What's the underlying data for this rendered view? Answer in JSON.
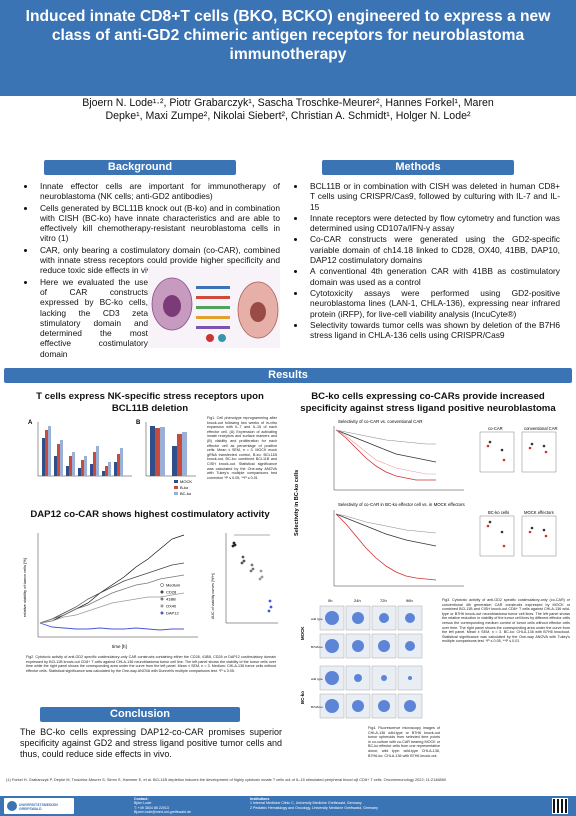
{
  "title": "Induced innate CD8+T cells (BKO, BCKO) engineered to express a new class of anti-GD2 chimeric antigen receptors for neuroblastoma immunotherapy",
  "authors_line1": "Bjoern N. Lode¹·², Piotr Grabarczyk¹, Sascha Troschke-Meurer², Hannes Forkel¹, Maren",
  "authors_line2": "Depke¹, Maxi Zumpe², Nikolai Siebert², Christian A. Schmidt¹, Holger N. Lode²",
  "sections": {
    "background": "Background",
    "methods": "Methods",
    "results": "Results",
    "conclusion": "Conclusion"
  },
  "background_items": [
    "Innate effector cells are important for immunotherapy of neuroblastoma (NK cells; anti-GD2 antibodies)",
    "Cells generated by BCL11B knock out (B-ko) and in combination with CISH (BC-ko) have innate characteristics and are able to effectively kill chemotherapy-resistant neuroblastoma cells in vitro (1)",
    "CAR, only bearing a costimulatory domain (co-CAR), combined with innate stress receptors could provide higher specificity and reduce toxic side effects in vivo",
    "Here we evaluated the use of CAR constructs expressed by BC-ko cells, lacking the CD3 zeta stimulatory domain and determined the most effective costimulatory domain"
  ],
  "methods_items": [
    "BCL11B or in combination with CISH was deleted in human CD8+ T cells using CRISPR/Cas9, followed by culturing with IL-7 and IL-15",
    "Innate receptors were detected by flow cytometry and function was determined using CD107a/IFN-γ assay",
    "Co-CAR constructs were generated using the GD2-specific variable domain of ch14.18 linked to CD28, OX40, 41BB, DAP10, DAP12 costimulatory domains",
    "A conventional 4th generation CAR with 41BB as costimulatory domain was used as a control",
    "Cytotoxicity assays were performed using GD2-positive neuroblastoma lines (LAN-1, CHLA-136), expressing near infrared protein (iRFP), for live-cell viability analysis (IncuCyte®)",
    "Selectivity towards tumor cells was shown by deletion of the B7H6 stress ligand in CHLA-136 cells using CRISPR/Cas9"
  ],
  "results": {
    "h_left1": "T cells express NK-specific stress receptors upon BCL11B deletion",
    "h_left2": "DAP12 co-CAR shows highest costimulatory activity",
    "h_right1": "BC-ko cells expressing co-CARs provide increased specificity against stress ligand positive neuroblastoma",
    "fig1_caption": "Fig1. Cell phenotype reprogramming after knock-out following two weeks of in-vitro expansion with IL-7 and IL-15 of each effector cell. (A) Expression of activating innate receptors and surface markers and (B) viability and proliferation for each effector cell as percentage of positive cells. Mean ± SEM, n = 3. MOCK mock gRNA transfected control, B-ko: BCL11B knock-out, BC-ko: combined BCL11B and CISH knock-out. Statistical significance was calculated by the One-way ANOVA with Tukey's multiple comparisons test correction *P ≤ 0.05, **P ≤ 0.01",
    "fig2_caption": "Fig2. Cytotoxic activity of anti-GD2 specific costimulatory-only CAR constructs containing either the CD28, 41BB, CD28 or DAP12 costimulatory domain expressed by BCL11B knock-out CD8+ T cells against CHLA-136 neuroblastoma tumor cell line. The left panel shows the viability of the tumor cells over time while the right panel shows the corresponding area under the curve from the left panel. Mean ± SEM, n = 3. Medium: CHLA-136 tumor cells without effector cells. Statistical significance was calculated by the One-way ANOVA with Dunnett's multiple comparisons test. *P ≤ 0.05.",
    "fig3_caption": "Fig3. Cytotoxic activity of anti-GD2 specific costimulatory-only (co-CAR) or conventional 4th generation CAR constructs expressed by MOCK or combined BCL11B and CISH knock-out CD8+ T cells against CHLA-136 wild-type or B7H6 knock-out neuroblastoma tumor cell lines. The left panel shows the relative reduction in viability of the tumor cell lines by different effector cells versus the corresponding medium control of tumor cells without effector cells over time. The right panel shows the corresponding area under the curve from the left panel. Mean ± SEM, n = 3. BC-ko: CHLA-136 with B7H6 knockout. Statistical significance was calculated by the One-way ANOVA with Tukey's multiple comparisons test. *P ≤ 0.05, **P ≤ 0.01",
    "fig4_caption": "Fig4. Fluorescence microscopy images of CHLA-136 wild-type or B7H6 knock-out tumor spheroids from selected time points in co-culture with co-CAR bearing MOCK or BC-ko effector cells from one representative donor, wild type: wild-type CHLA-136, B7H6-ko: CHLA-136 with B7H6 knock-out.",
    "panel_top_right": "Selectivity of co-CAR vs. conventional CAR",
    "panel_mid_right": "Selectivity of co-CAR in BC-ko effector cell vs. in MOCK effectors",
    "y_side_label": "Selectivity in BC-ko cells",
    "row_labels": [
      "MOCK",
      "BC-ko"
    ],
    "row_sub": [
      "wild type",
      "B7H6-ko",
      "wild type",
      "B7H6-ko"
    ],
    "time_cols": [
      "0h",
      "24h",
      "72h",
      "96h"
    ],
    "mini_titles": [
      "co-CAR",
      "conventional CAR",
      "BC-ko cells",
      "MOCK effectors"
    ],
    "legend1": [
      "MOCK",
      "B-ko",
      "BC-ko"
    ],
    "legend2": [
      "Medium",
      "CD28",
      "41BB",
      "OX40",
      "DAP12"
    ],
    "axis_time": "time [h]",
    "axis_viab": "relative viability of tumor cells [%]",
    "axis_auc": "AUC of viability curves [%*h]"
  },
  "conclusion_text": "The BC-ko cells expressing DAP12-co-CAR promises superior specificity against GD2 and stress ligand positive tumor cells and thus, could reduce side effects in vivo.",
  "reference": "(1) Forkel H, Grabarczyk P, Depke M, Troschke-Meurer S, Simm S, Hammer E, et al. BCL11B depletion induces the development of highly cytotoxic innate T cells out of IL-15 stimulated peripheral blood αβ CD8+ T cells. Oncoimmunology 2022; 11:2148850",
  "footer": {
    "logo_text": "UNIVERSITÄTSMEDIZIN GREIFSWALD",
    "contact_label": "Contact:",
    "contact_name": "Björn Lode",
    "contact_phone": "T: +49 3834 86 22013",
    "contact_email": "Bjoern.lode@med.uni-greifswald.de",
    "inst_label": "Institutions",
    "inst1": "1 Internal Medicine Clinic C, University Medicine Greifswald, Germany",
    "inst2": "2 Pediatric Hematology and Oncology, University Medicine Greifswald, Germany"
  }
}
